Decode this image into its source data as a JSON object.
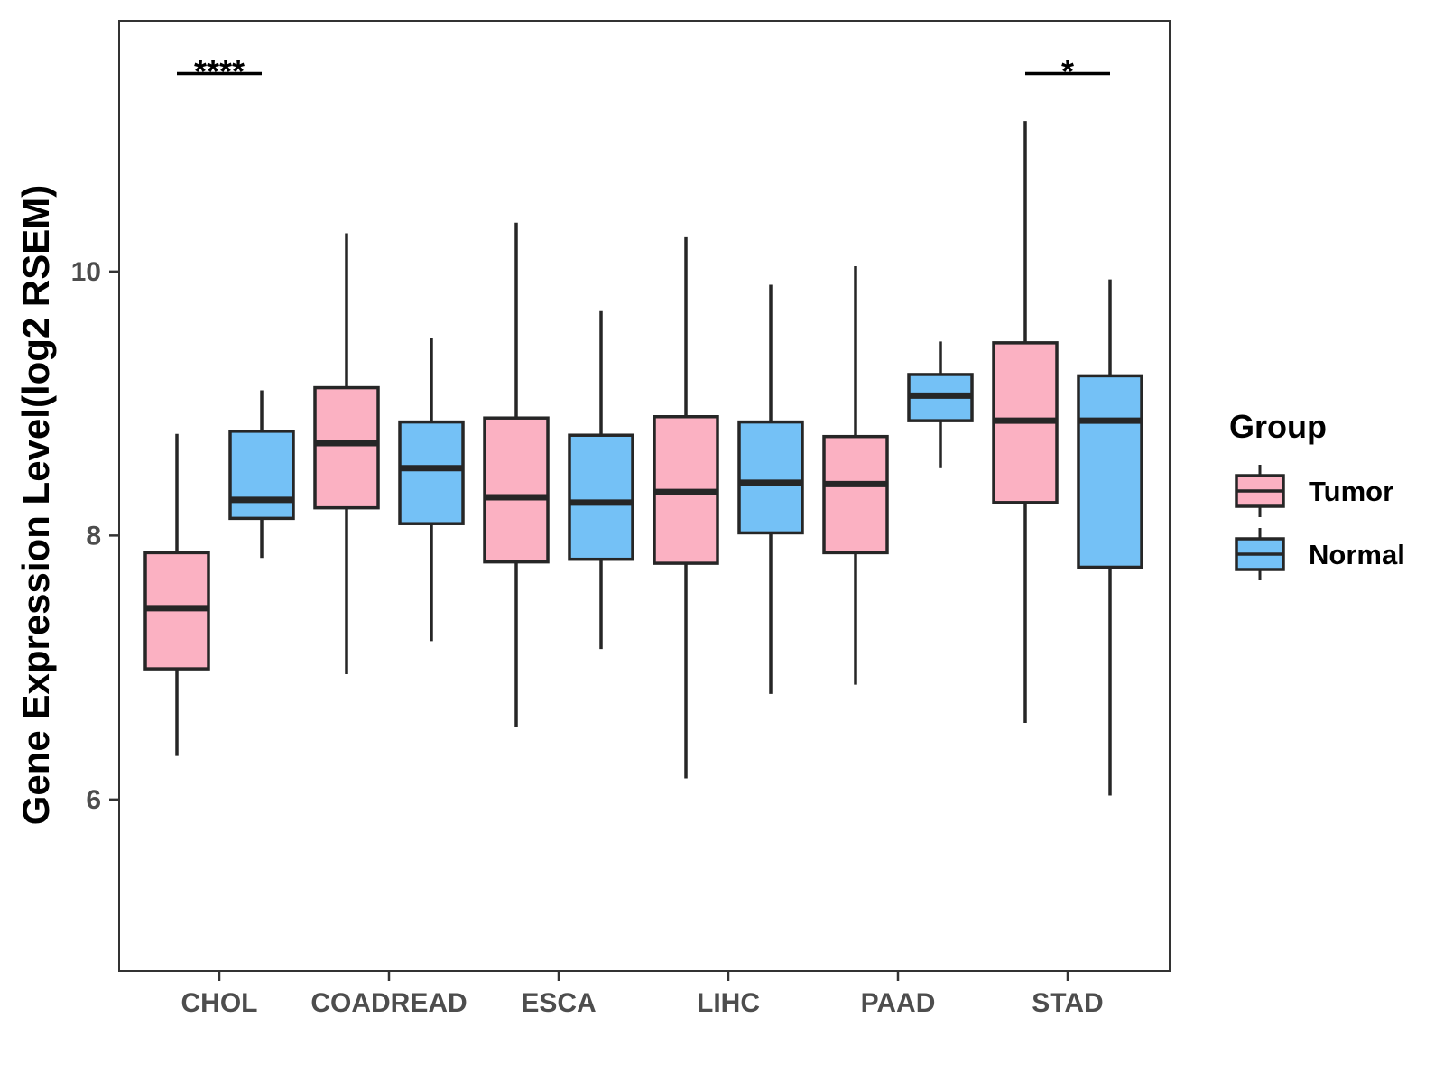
{
  "chart_data": {
    "type": "boxplot",
    "title": "",
    "xlabel": "",
    "ylabel": "Gene Expression Level(log2 RSEM)",
    "ylim": [
      4.7,
      11.9
    ],
    "yticks": [
      6,
      8,
      10
    ],
    "categories": [
      "CHOL",
      "COADREAD",
      "ESCA",
      "LIHC",
      "PAAD",
      "STAD"
    ],
    "legend": {
      "title": "Group",
      "position": "right",
      "entries": [
        {
          "name": "Tumor",
          "color": "#fbb1c2"
        },
        {
          "name": "Normal",
          "color": "#74c1f6"
        }
      ]
    },
    "series": [
      {
        "name": "Tumor",
        "color": "#fbb1c2",
        "boxes": [
          {
            "category": "CHOL",
            "min": 6.33,
            "q1": 6.99,
            "median": 7.45,
            "q3": 7.87,
            "max": 8.77
          },
          {
            "category": "COADREAD",
            "min": 6.95,
            "q1": 8.21,
            "median": 8.7,
            "q3": 9.12,
            "max": 10.29
          },
          {
            "category": "ESCA",
            "min": 6.55,
            "q1": 7.8,
            "median": 8.29,
            "q3": 8.89,
            "max": 10.37
          },
          {
            "category": "LIHC",
            "min": 6.16,
            "q1": 7.79,
            "median": 8.33,
            "q3": 8.9,
            "max": 10.26
          },
          {
            "category": "PAAD",
            "min": 6.87,
            "q1": 7.87,
            "median": 8.39,
            "q3": 8.75,
            "max": 10.04
          },
          {
            "category": "STAD",
            "min": 6.58,
            "q1": 8.25,
            "median": 8.87,
            "q3": 9.46,
            "max": 11.14
          }
        ]
      },
      {
        "name": "Normal",
        "color": "#74c1f6",
        "boxes": [
          {
            "category": "CHOL",
            "min": 7.83,
            "q1": 8.13,
            "median": 8.27,
            "q3": 8.79,
            "max": 9.1
          },
          {
            "category": "COADREAD",
            "min": 7.2,
            "q1": 8.09,
            "median": 8.51,
            "q3": 8.86,
            "max": 9.5
          },
          {
            "category": "ESCA",
            "min": 7.14,
            "q1": 7.82,
            "median": 8.25,
            "q3": 8.76,
            "max": 9.7
          },
          {
            "category": "LIHC",
            "min": 6.8,
            "q1": 8.02,
            "median": 8.4,
            "q3": 8.86,
            "max": 9.9
          },
          {
            "category": "PAAD",
            "min": 8.51,
            "q1": 8.87,
            "median": 9.06,
            "q3": 9.22,
            "max": 9.47
          },
          {
            "category": "STAD",
            "min": 6.03,
            "q1": 7.76,
            "median": 8.87,
            "q3": 9.21,
            "max": 9.94
          }
        ]
      }
    ],
    "annotations": [
      {
        "category": "CHOL",
        "label": "****",
        "y": 11.5
      },
      {
        "category": "STAD",
        "label": "*",
        "y": 11.5
      }
    ]
  }
}
